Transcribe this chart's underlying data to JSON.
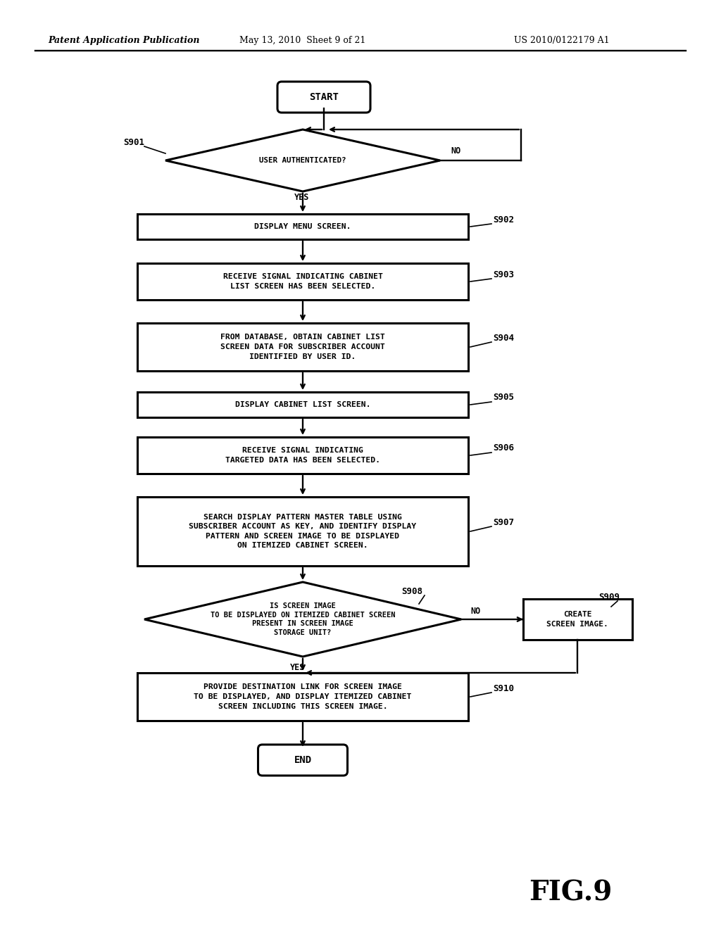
{
  "header_left": "Patent Application Publication",
  "header_mid": "May 13, 2010  Sheet 9 of 21",
  "header_right": "US 2010/0122179 A1",
  "fig_label": "FIG.9",
  "bg": "#ffffff",
  "lc": "#000000",
  "s_start": "START",
  "s_end": "END",
  "s901_label": "S901",
  "s901_text": "USER AUTHENTICATED?",
  "s902_label": "S902",
  "s902_text": "DISPLAY MENU SCREEN.",
  "s903_label": "S903",
  "s903_text": "RECEIVE SIGNAL INDICATING CABINET\nLIST SCREEN HAS BEEN SELECTED.",
  "s904_label": "S904",
  "s904_text": "FROM DATABASE, OBTAIN CABINET LIST\nSCREEN DATA FOR SUBSCRIBER ACCOUNT\nIDENTIFIED BY USER ID.",
  "s905_label": "S905",
  "s905_text": "DISPLAY CABINET LIST SCREEN.",
  "s906_label": "S906",
  "s906_text": "RECEIVE SIGNAL INDICATING\nTARGETED DATA HAS BEEN SELECTED.",
  "s907_label": "S907",
  "s907_text": "SEARCH DISPLAY PATTERN MASTER TABLE USING\nSUBSCRIBER ACCOUNT AS KEY, AND IDENTIFY DISPLAY\nPATTERN AND SCREEN IMAGE TO BE DISPLAYED\nON ITEMIZED CABINET SCREEN.",
  "s908_label": "S908",
  "s908_text": "IS SCREEN IMAGE\nTO BE DISPLAYED ON ITEMIZED CABINET SCREEN\nPRESENT IN SCREEN IMAGE\nSTORAGE UNIT?",
  "s909_label": "S909",
  "s909_text": "CREATE\nSCREEN IMAGE.",
  "s910_label": "S910",
  "s910_text": "PROVIDE DESTINATION LINK FOR SCREEN IMAGE\nTO BE DISPLAYED, AND DISPLAY ITEMIZED CABINET\nSCREEN INCLUDING THIS SCREEN IMAGE.",
  "no_text": "NO",
  "yes_text": "YES"
}
